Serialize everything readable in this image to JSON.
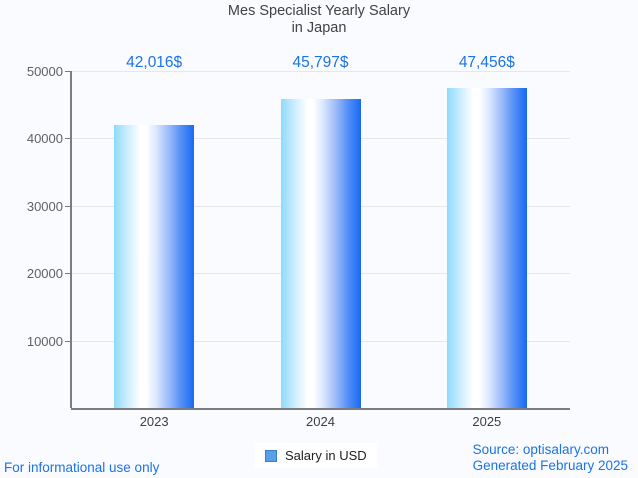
{
  "title": {
    "line1": "Mes Specialist Yearly Salary",
    "line2": "in Japan"
  },
  "chart_data": {
    "type": "bar",
    "title": "Mes Specialist Yearly Salary in Japan",
    "categories": [
      "2023",
      "2024",
      "2025"
    ],
    "values": [
      42016,
      45797,
      47456
    ],
    "value_labels": [
      "42,016$",
      "45,797$",
      "47,456$"
    ],
    "series_name": "Salary in USD",
    "ylim": [
      0,
      50000
    ],
    "yticks": [
      10000,
      20000,
      30000,
      40000,
      50000
    ],
    "ytick_labels": [
      "10000",
      "20000",
      "30000",
      "40000",
      "50000"
    ],
    "grid": true,
    "legend_position": "bottom"
  },
  "legend": {
    "label": "Salary in USD"
  },
  "footer": {
    "left": "For informational use only",
    "source": "Source: optisalary.com",
    "generated": "Generated February 2025"
  },
  "colors": {
    "accent_blue": "#1a73e8",
    "bar_gradient_left": "#8ddafc",
    "bar_gradient_right": "#186af3",
    "title_gray": "#424242",
    "axis_gray": "#7d7d7d",
    "background": "#fafbfe"
  }
}
